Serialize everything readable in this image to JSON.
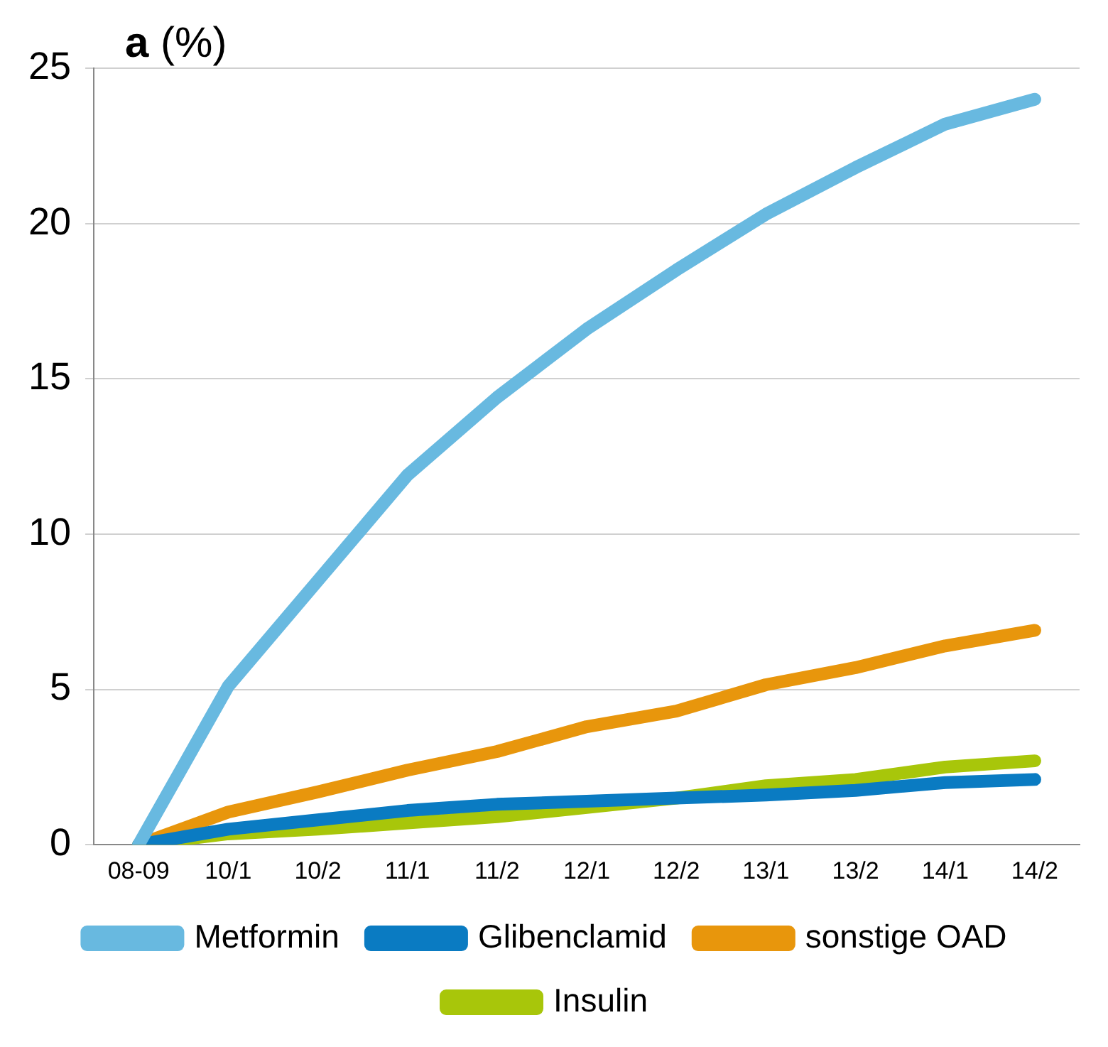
{
  "chart_data": {
    "type": "line",
    "title": "a (%)",
    "categories": [
      "08-09",
      "10/1",
      "10/2",
      "11/1",
      "11/2",
      "12/1",
      "12/2",
      "13/1",
      "13/2",
      "14/1",
      "14/2"
    ],
    "series": [
      {
        "name": "Metformin",
        "color": "#68b9e0",
        "values": [
          0,
          5.1,
          8.5,
          11.9,
          14.4,
          16.6,
          18.5,
          20.3,
          21.8,
          23.2,
          24.0
        ]
      },
      {
        "name": "Glibenclamid",
        "color": "#0a7bc2",
        "values": [
          0,
          0.5,
          0.8,
          1.1,
          1.3,
          1.4,
          1.5,
          1.6,
          1.75,
          2.0,
          2.1
        ]
      },
      {
        "name": "sonstige OAD",
        "color": "#e8960c",
        "values": [
          0,
          1.05,
          1.7,
          2.4,
          3.0,
          3.8,
          4.3,
          5.15,
          5.7,
          6.4,
          6.9
        ]
      },
      {
        "name": "Insulin",
        "color": "#a8c60a",
        "values": [
          0,
          0.35,
          0.5,
          0.7,
          0.9,
          1.2,
          1.5,
          1.9,
          2.1,
          2.5,
          2.7
        ]
      }
    ],
    "ylim": [
      0,
      25
    ],
    "yticks": [
      0,
      5,
      10,
      15,
      20,
      25
    ],
    "grid": "y",
    "legend": "bottom",
    "marker": "none",
    "line_style": "solid"
  }
}
